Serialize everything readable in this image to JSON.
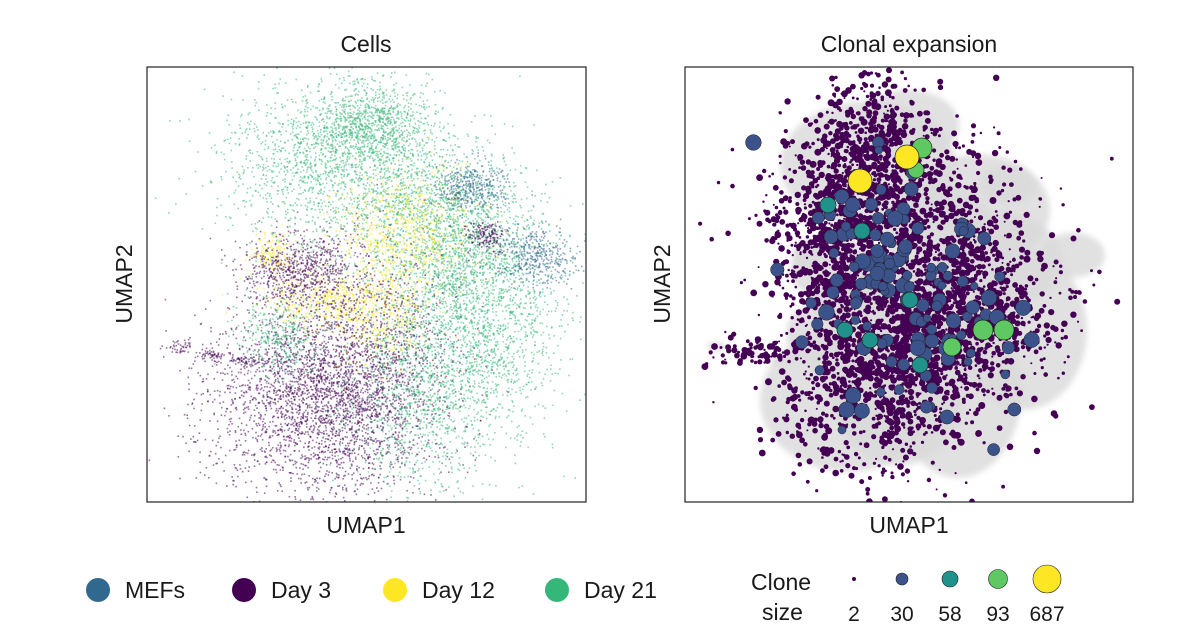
{
  "chart_data": [
    {
      "type": "scatter",
      "title": "Cells",
      "xlabel": "UMAP1",
      "ylabel": "UMAP2",
      "grid": false,
      "legend": {
        "placement": "bottom",
        "entries": [
          {
            "name": "MEFs",
            "color": "#31688e"
          },
          {
            "name": "Day 3",
            "color": "#440154"
          },
          {
            "name": "Day 12",
            "color": "#fde725"
          },
          {
            "name": "Day 21",
            "color": "#35b779"
          }
        ]
      }
    },
    {
      "type": "scatter",
      "title": "Clonal expansion",
      "xlabel": "UMAP1",
      "ylabel": "UMAP2",
      "grid": false,
      "background_color": "#d9d9d9",
      "legend": {
        "placement": "bottom",
        "title_line1": "Clone",
        "title_line2": "size",
        "entries": [
          {
            "value": "2",
            "color": "#440154"
          },
          {
            "value": "30",
            "color": "#3b528b"
          },
          {
            "value": "58",
            "color": "#21918c"
          },
          {
            "value": "93",
            "color": "#5ec962"
          },
          {
            "value": "687",
            "color": "#fde725"
          }
        ]
      }
    }
  ]
}
